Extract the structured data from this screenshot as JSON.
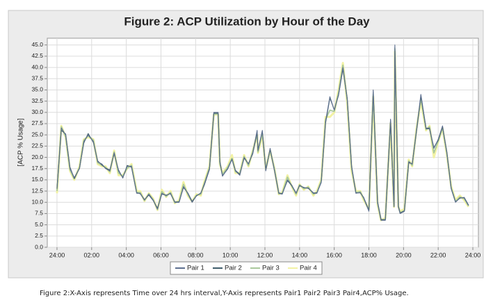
{
  "chart_data": {
    "type": "line",
    "title": "Figure 2: ACP Utilization by Hour of the Day",
    "ylabel": "[ACP % Usage]",
    "caption": "Figure 2:X-Axis represents Time over 24 hrs interval,Y-Axis represents Pair1 Pair2 Pair3 Pair4,ACP% Usage.",
    "xlim": [
      -0.56,
      24.32
    ],
    "ylim": [
      0,
      46.5
    ],
    "xticks": [
      {
        "value": 0,
        "label": "24:00"
      },
      {
        "value": 2,
        "label": "02:00"
      },
      {
        "value": 4,
        "label": "04:00"
      },
      {
        "value": 6,
        "label": "06:00"
      },
      {
        "value": 8,
        "label": "08:00"
      },
      {
        "value": 10,
        "label": "10:00"
      },
      {
        "value": 12,
        "label": "12:00"
      },
      {
        "value": 14,
        "label": "14:00"
      },
      {
        "value": 16,
        "label": "16:00"
      },
      {
        "value": 18,
        "label": "18:00"
      },
      {
        "value": 20,
        "label": "20:00"
      },
      {
        "value": 22,
        "label": "22:00"
      },
      {
        "value": 24,
        "label": "24:00"
      }
    ],
    "yticks": [
      {
        "value": 0,
        "label": "0.0"
      },
      2.5,
      {
        "value": 5,
        "label": "5.0"
      },
      7.5,
      {
        "value": 10,
        "label": "10.0"
      },
      12.5,
      {
        "value": 15,
        "label": "15.0"
      },
      17.5,
      {
        "value": 20,
        "label": "20.0"
      },
      22.5,
      {
        "value": 25,
        "label": "25.0"
      },
      27.5,
      {
        "value": 30,
        "label": "30.0"
      },
      32.5,
      {
        "value": 35,
        "label": "35.0"
      },
      37.5,
      {
        "value": 40,
        "label": "40.0"
      },
      42.5,
      {
        "value": 45,
        "label": "45.0"
      }
    ],
    "grid": true,
    "x": [
      0,
      0.25,
      0.5,
      0.75,
      1.0,
      1.3,
      1.55,
      1.8,
      2.1,
      2.35,
      2.6,
      2.8,
      3.05,
      3.3,
      3.55,
      3.8,
      4.05,
      4.3,
      4.6,
      4.8,
      5.05,
      5.3,
      5.55,
      5.8,
      6.05,
      6.3,
      6.55,
      6.8,
      7.05,
      7.3,
      7.55,
      7.8,
      8.05,
      8.3,
      8.5,
      8.8,
      9.05,
      9.3,
      9.4,
      9.55,
      9.85,
      10.1,
      10.3,
      10.55,
      10.8,
      11.05,
      11.3,
      11.55,
      11.6,
      11.85,
      12.05,
      12.3,
      12.55,
      12.8,
      13.0,
      13.3,
      13.55,
      13.8,
      14.0,
      14.25,
      14.5,
      14.8,
      15.0,
      15.25,
      15.5,
      15.75,
      16.0,
      16.25,
      16.5,
      16.75,
      17.0,
      17.25,
      17.5,
      17.7,
      18.0,
      18.25,
      18.5,
      18.7,
      18.95,
      19.25,
      19.45,
      19.5,
      19.7,
      19.8,
      20.05,
      20.3,
      20.5,
      20.75,
      21.0,
      21.3,
      21.5,
      21.75,
      22.0,
      22.25,
      22.5,
      22.75,
      23.0,
      23.25,
      23.5,
      23.75
    ],
    "series": [
      {
        "name": "Pair 1",
        "color": "#5d6f8f",
        "values": [
          13,
          26.5,
          25,
          17.5,
          15.5,
          17.5,
          23.5,
          25,
          23.5,
          19,
          18.5,
          17.5,
          17,
          21,
          17,
          15.5,
          18,
          18,
          12,
          12,
          10.5,
          11.8,
          10.5,
          8.5,
          12,
          11.5,
          12,
          10,
          10,
          13.5,
          12,
          10,
          11.5,
          12,
          14,
          17.5,
          30,
          30,
          19,
          15.8,
          17.5,
          19.5,
          17,
          16,
          20,
          18.5,
          21,
          26,
          21.5,
          26,
          17,
          22,
          17,
          12,
          11.8,
          15,
          13.8,
          12,
          13.8,
          13.2,
          13.2,
          12,
          12,
          14.5,
          28,
          33.5,
          30.5,
          34,
          40,
          33,
          18,
          12,
          12.2,
          11,
          8,
          35,
          10,
          6,
          6,
          28.5,
          9,
          45,
          9,
          7.5,
          8,
          19,
          18.5,
          26,
          34,
          26.5,
          26.5,
          22,
          24,
          27,
          21,
          13,
          10,
          11,
          11,
          9.3
        ]
      },
      {
        "name": "Pair 2",
        "color": "#3f5d6b",
        "values": [
          13.2,
          26,
          25.2,
          17.8,
          15.3,
          17.6,
          23.2,
          25.3,
          23.3,
          19.2,
          18.3,
          17.6,
          17.2,
          20.8,
          17.2,
          15.4,
          18.2,
          17.8,
          12.1,
          11.9,
          10.6,
          11.6,
          10.4,
          8.7,
          11.8,
          11.6,
          11.9,
          10.1,
          10.1,
          13.3,
          12.1,
          10.2,
          11.4,
          12.1,
          13.8,
          17.3,
          29.8,
          29.8,
          19.2,
          15.9,
          17.4,
          19.6,
          17.1,
          16.2,
          19.8,
          18.6,
          20.8,
          25.6,
          21.6,
          25.8,
          17.2,
          21.8,
          17.1,
          12.1,
          11.9,
          14.8,
          13.7,
          12.1,
          13.7,
          13.3,
          13.1,
          12.1,
          12.1,
          14.4,
          27.6,
          33.2,
          30.6,
          33.8,
          39.6,
          33.2,
          18.2,
          12.1,
          12.1,
          11.1,
          8.2,
          34.6,
          10.2,
          6.2,
          6.1,
          28.2,
          9.2,
          44.6,
          9.2,
          7.6,
          8.1,
          18.8,
          18.6,
          25.8,
          33.6,
          26.4,
          26.3,
          22.2,
          23.8,
          26.8,
          21.2,
          13.1,
          10.1,
          10.9,
          11.1,
          9.4
        ]
      },
      {
        "name": "Pair 3",
        "color": "#a9c89c",
        "values": [
          12.5,
          26.8,
          24.6,
          17.2,
          15.2,
          17.8,
          23.8,
          24.8,
          23.8,
          18.8,
          18.2,
          17.8,
          16.8,
          21.2,
          16.5,
          15.8,
          17.6,
          18.2,
          12.2,
          12.2,
          10.4,
          11.9,
          10.6,
          8.4,
          12.4,
          11.3,
          12.2,
          9.9,
          10.2,
          14,
          11.8,
          10.1,
          11.6,
          11.8,
          14.2,
          17.8,
          29.6,
          29.6,
          18.6,
          16.2,
          17.8,
          19.8,
          16.8,
          16.4,
          20.2,
          18.2,
          21.4,
          25.2,
          21.2,
          25.4,
          17.4,
          21.6,
          17.4,
          11.9,
          12,
          15.6,
          13.6,
          11.8,
          13.9,
          13,
          13.4,
          11.8,
          12.2,
          14.8,
          28.4,
          30.5,
          30.2,
          34.4,
          40.5,
          32.6,
          17.6,
          12.2,
          12.4,
          10.8,
          8.3,
          34.2,
          9.8,
          6.1,
          6.2,
          27.8,
          9.1,
          44.2,
          9.1,
          7.7,
          8.2,
          19.2,
          18.2,
          26.2,
          33.2,
          26.2,
          26.8,
          21,
          23.6,
          26.6,
          20.8,
          13.2,
          10.2,
          11.2,
          10.8,
          9.2
        ]
      },
      {
        "name": "Pair 4",
        "color": "#f2f2a4",
        "values": [
          12,
          27,
          24.5,
          17,
          15,
          18,
          24,
          24.5,
          24,
          18.5,
          18,
          18,
          16.5,
          21.5,
          16,
          16,
          17.5,
          18.5,
          12.5,
          12.5,
          10.3,
          12,
          10.8,
          8.3,
          12.8,
          11.2,
          12.5,
          9.8,
          10.5,
          14.5,
          11.5,
          10.2,
          11.8,
          11.5,
          14.5,
          18,
          29.5,
          29.5,
          18.5,
          16.5,
          18,
          20.5,
          16.5,
          16.5,
          20.5,
          18,
          21.5,
          25,
          21,
          25,
          17.5,
          21.5,
          17.5,
          11.8,
          12.2,
          16,
          13.5,
          11.5,
          14,
          12.8,
          13.5,
          11.5,
          12.5,
          15,
          29,
          29,
          30,
          35,
          41,
          32,
          17,
          12.5,
          12.5,
          10.5,
          8.5,
          33.5,
          9.5,
          6,
          6.5,
          27.5,
          9,
          43.5,
          9,
          8,
          8.5,
          19.5,
          18,
          26.5,
          32.5,
          26,
          27,
          20,
          23.5,
          26.5,
          20.5,
          13.5,
          10.5,
          11.5,
          10.5,
          9
        ]
      }
    ]
  }
}
